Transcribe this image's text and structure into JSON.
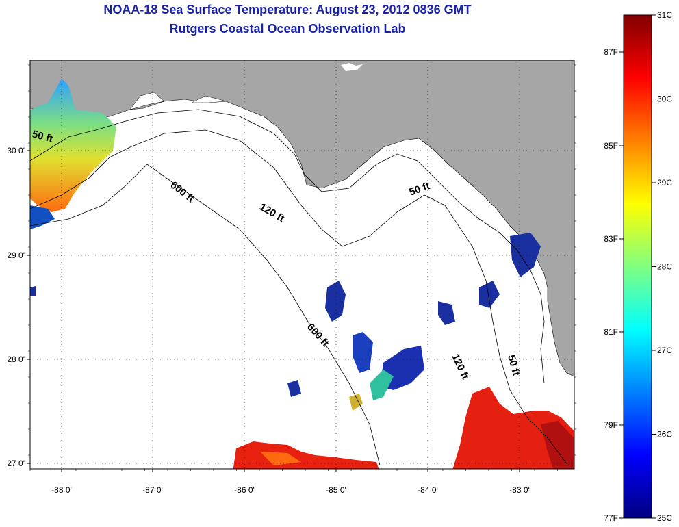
{
  "title": "NOAA-18 Sea Surface Temperature:  August 23, 2012 0836 GMT",
  "subtitle": "Rutgers Coastal Ocean Observation Lab",
  "map": {
    "lon_ticks": [
      "-88 0'",
      "-87 0'",
      "-86 0'",
      "-85 0'",
      "-84 0'",
      "-83 0'"
    ],
    "lat_ticks": [
      "30 0'",
      "29 0'",
      "28 0'",
      "27 0'"
    ],
    "contours": {
      "c50_west": "50 ft",
      "c600_north": "600 ft",
      "c120_north": "120 ft",
      "c50_east": "50 ft",
      "c600_south": "600 ft",
      "c120_south": "120 ft",
      "c50_south": "50 ft"
    }
  },
  "colorbar": {
    "fahrenheit": [
      "87F",
      "85F",
      "83F",
      "81F",
      "79F",
      "77F"
    ],
    "celsius": [
      "31C",
      "30C",
      "29C",
      "28C",
      "27C",
      "26C",
      "25C"
    ],
    "colors": {
      "top": "#800000",
      "red": "#ff0000",
      "orange": "#ff8000",
      "yellow": "#ffff00",
      "cyan": "#00ffff",
      "blue": "#0000ff",
      "bottom": "#000080"
    }
  },
  "land_color": "#a6a6a6"
}
